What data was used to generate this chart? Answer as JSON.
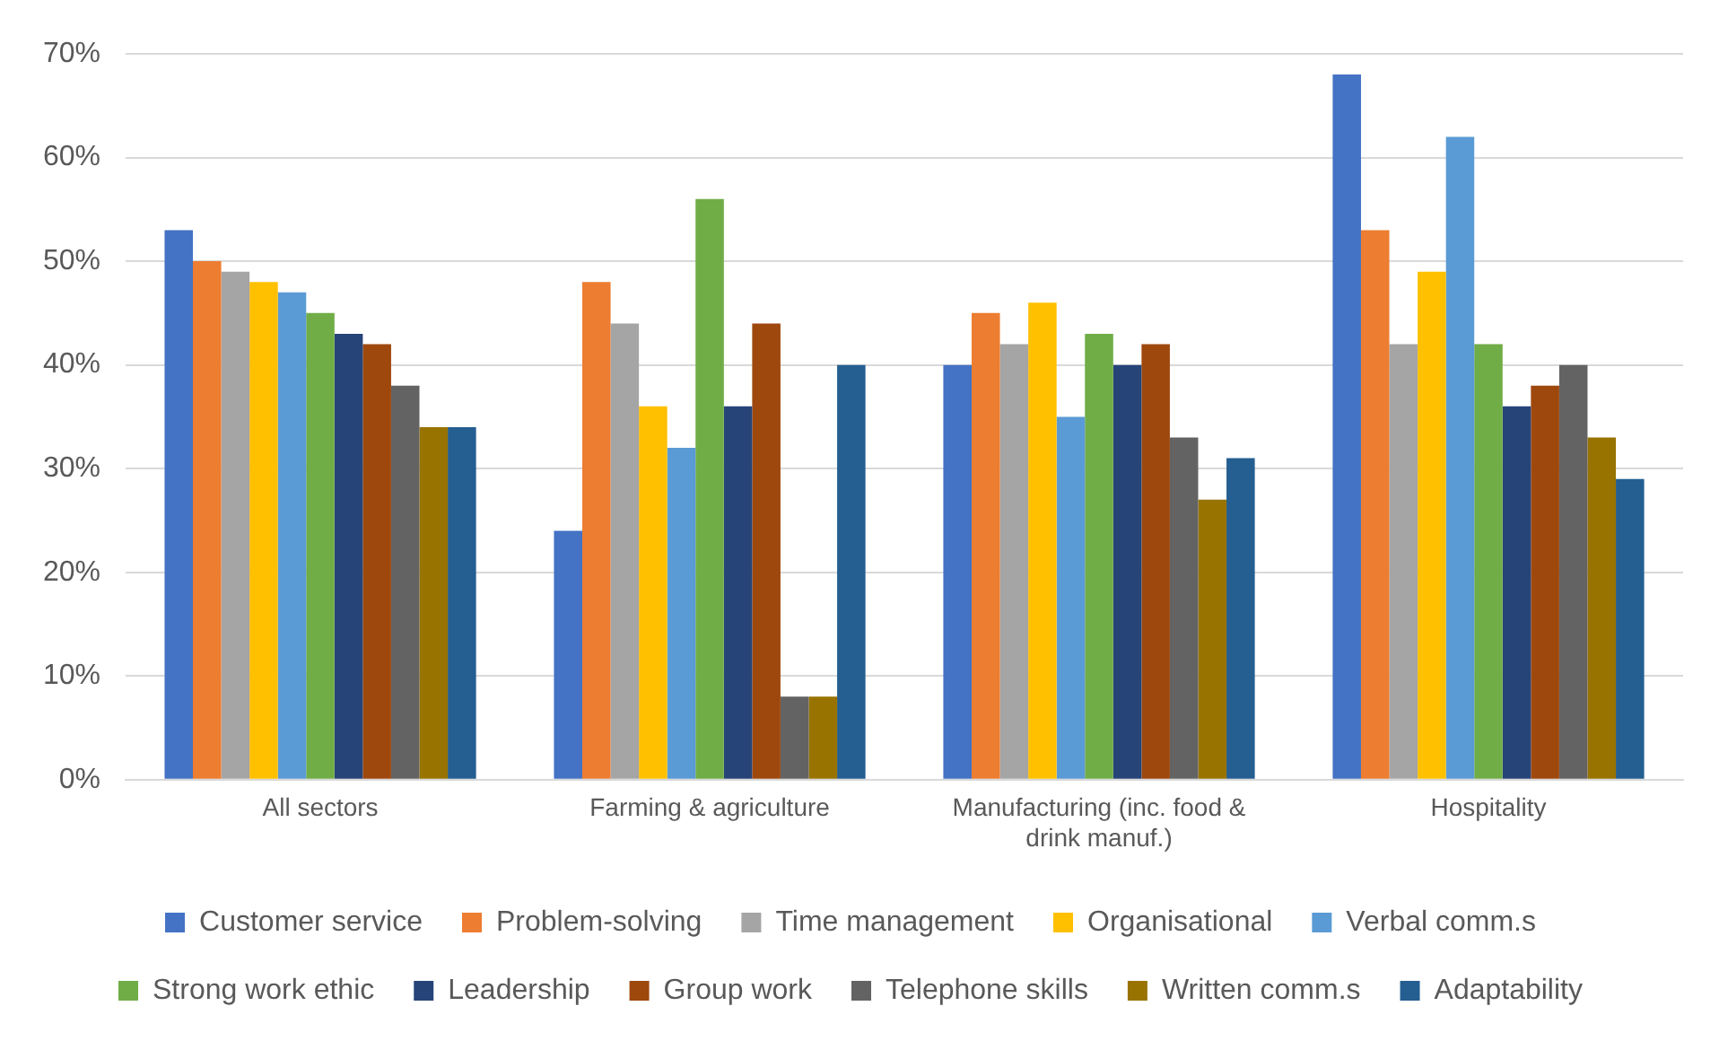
{
  "chart_data": {
    "type": "bar",
    "categories": [
      "All sectors",
      "Farming & agriculture",
      "Manufacturing (inc. food & drink manuf.)",
      "Hospitality"
    ],
    "series": [
      {
        "name": "Customer service",
        "color": "#4472c4",
        "values": [
          53,
          24,
          40,
          68
        ]
      },
      {
        "name": "Problem-solving",
        "color": "#ed7d31",
        "values": [
          50,
          48,
          45,
          53
        ]
      },
      {
        "name": "Time management",
        "color": "#a5a5a5",
        "values": [
          49,
          44,
          42,
          42
        ]
      },
      {
        "name": "Organisational",
        "color": "#ffc000",
        "values": [
          48,
          36,
          46,
          49
        ]
      },
      {
        "name": "Verbal comm.s",
        "color": "#5b9bd5",
        "values": [
          47,
          32,
          35,
          62
        ]
      },
      {
        "name": "Strong work ethic",
        "color": "#70ad47",
        "values": [
          45,
          56,
          43,
          42
        ]
      },
      {
        "name": "Leadership",
        "color": "#264478",
        "values": [
          43,
          36,
          40,
          36
        ]
      },
      {
        "name": "Group work",
        "color": "#9e480e",
        "values": [
          42,
          44,
          42,
          38
        ]
      },
      {
        "name": "Telephone skills",
        "color": "#636363",
        "values": [
          38,
          8,
          33,
          40
        ]
      },
      {
        "name": "Written comm.s",
        "color": "#997300",
        "values": [
          34,
          8,
          27,
          33
        ]
      },
      {
        "name": "Adaptability",
        "color": "#255e91",
        "values": [
          34,
          40,
          31,
          29
        ]
      }
    ],
    "ylim": [
      0,
      70
    ],
    "yticks": [
      {
        "value": 0,
        "label": "0%"
      },
      {
        "value": 10,
        "label": "10%"
      },
      {
        "value": 20,
        "label": "20%"
      },
      {
        "value": 30,
        "label": "30%"
      },
      {
        "value": 40,
        "label": "40%"
      },
      {
        "value": 50,
        "label": "50%"
      },
      {
        "value": 60,
        "label": "60%"
      },
      {
        "value": 70,
        "label": "70%"
      }
    ],
    "grid": "y",
    "legend": "bottom"
  }
}
